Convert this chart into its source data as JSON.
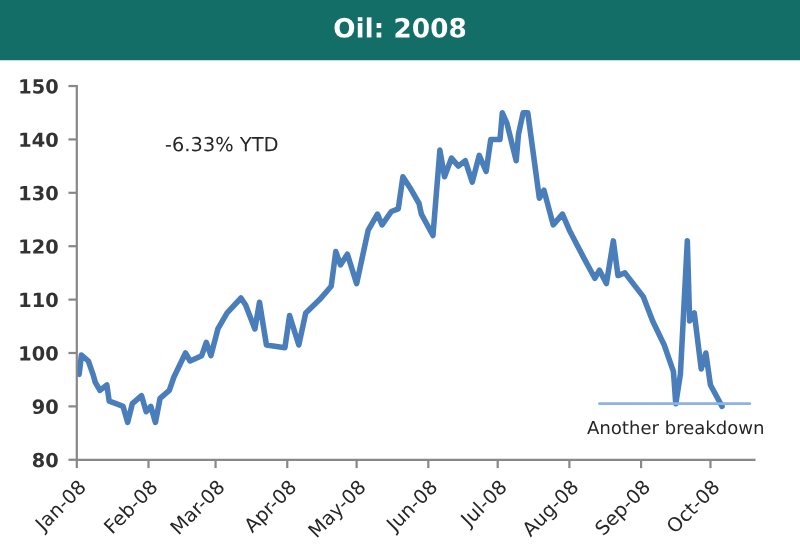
{
  "chart_data": {
    "type": "line",
    "title": "Oil: 2008",
    "x": [
      "2008-01-02",
      "2008-01-03",
      "2008-01-06",
      "2008-01-08",
      "2008-01-09",
      "2008-01-11",
      "2008-01-14",
      "2008-01-15",
      "2008-01-18",
      "2008-01-21",
      "2008-01-23",
      "2008-01-25",
      "2008-01-29",
      "2008-01-31",
      "2008-02-02",
      "2008-02-04",
      "2008-02-06",
      "2008-02-10",
      "2008-02-12",
      "2008-02-17",
      "2008-02-19",
      "2008-02-24",
      "2008-02-26",
      "2008-02-28",
      "2008-03-02",
      "2008-03-06",
      "2008-03-12",
      "2008-03-14",
      "2008-03-18",
      "2008-03-20",
      "2008-03-23",
      "2008-03-31",
      "2008-04-02",
      "2008-04-06",
      "2008-04-09",
      "2008-04-15",
      "2008-04-20",
      "2008-04-22",
      "2008-04-24",
      "2008-04-27",
      "2008-05-01",
      "2008-05-06",
      "2008-05-10",
      "2008-05-12",
      "2008-05-16",
      "2008-05-19",
      "2008-05-21",
      "2008-05-24",
      "2008-05-28",
      "2008-05-29",
      "2008-06-03",
      "2008-06-06",
      "2008-06-08",
      "2008-06-11",
      "2008-06-14",
      "2008-06-17",
      "2008-06-20",
      "2008-06-23",
      "2008-06-26",
      "2008-06-28",
      "2008-07-02",
      "2008-07-03",
      "2008-07-05",
      "2008-07-09",
      "2008-07-10",
      "2008-07-12",
      "2008-07-14",
      "2008-07-19",
      "2008-07-21",
      "2008-07-25",
      "2008-07-29",
      "2008-08-01",
      "2008-08-07",
      "2008-08-12",
      "2008-08-14",
      "2008-08-17",
      "2008-08-20",
      "2008-08-22",
      "2008-08-25",
      "2008-09-02",
      "2008-09-06",
      "2008-09-11",
      "2008-09-15",
      "2008-09-16",
      "2008-09-18",
      "2008-09-21",
      "2008-09-22",
      "2008-09-24",
      "2008-09-27",
      "2008-09-29",
      "2008-10-01",
      "2008-10-06"
    ],
    "series": [
      {
        "color": "#4a7ebb",
        "values": [
          96,
          99.6,
          98.5,
          96,
          94.5,
          93,
          94,
          91,
          90.5,
          90,
          87,
          90.5,
          92,
          89,
          90,
          87,
          91.5,
          93,
          95.5,
          100,
          98.5,
          99.5,
          102,
          99.5,
          104.5,
          107.5,
          110.3,
          109,
          104.5,
          109.5,
          101.5,
          101,
          107,
          101.5,
          107.5,
          110,
          112.5,
          119,
          116.5,
          118.5,
          113,
          123,
          126,
          124,
          126.5,
          127,
          133,
          131,
          128,
          126,
          122,
          138,
          133,
          136.5,
          135,
          136,
          132,
          137,
          134,
          140,
          140,
          145,
          143,
          136,
          141,
          145,
          145,
          129,
          130.5,
          124,
          126,
          123,
          118,
          114,
          115.5,
          113,
          121,
          114.5,
          115,
          110.5,
          106,
          101.5,
          96.5,
          90.5,
          96,
          121,
          106,
          107.5,
          97,
          100,
          94,
          90
        ]
      },
      {
        "color": "#8db3e2",
        "x": [
          "2008-08-14",
          "2008-10-18"
        ],
        "values": [
          90.5,
          90.5
        ]
      }
    ],
    "xlim": [
      "2008-01-01",
      "2008-10-20"
    ],
    "xticks": [
      {
        "value": "2008-01-01",
        "label": "Jan-08"
      },
      {
        "value": "2008-02-01",
        "label": "Feb-08"
      },
      {
        "value": "2008-03-01",
        "label": "Mar-08"
      },
      {
        "value": "2008-04-01",
        "label": "Apr-08"
      },
      {
        "value": "2008-05-01",
        "label": "May-08"
      },
      {
        "value": "2008-06-01",
        "label": "Jun-08"
      },
      {
        "value": "2008-07-01",
        "label": "Jul-08"
      },
      {
        "value": "2008-08-01",
        "label": "Aug-08"
      },
      {
        "value": "2008-09-01",
        "label": "Sep-08"
      },
      {
        "value": "2008-10-01",
        "label": "Oct-08"
      }
    ],
    "ylim": [
      80,
      150
    ],
    "yticks": [
      80,
      90,
      100,
      110,
      120,
      130,
      140,
      150
    ],
    "grid": false,
    "legend": false,
    "marker": "none",
    "line_style": "solid",
    "annotations": [
      "-6.33% YTD",
      {
        "text": "Another breakdown",
        "x": "2008-09-16",
        "y": 90.5
      }
    ]
  }
}
